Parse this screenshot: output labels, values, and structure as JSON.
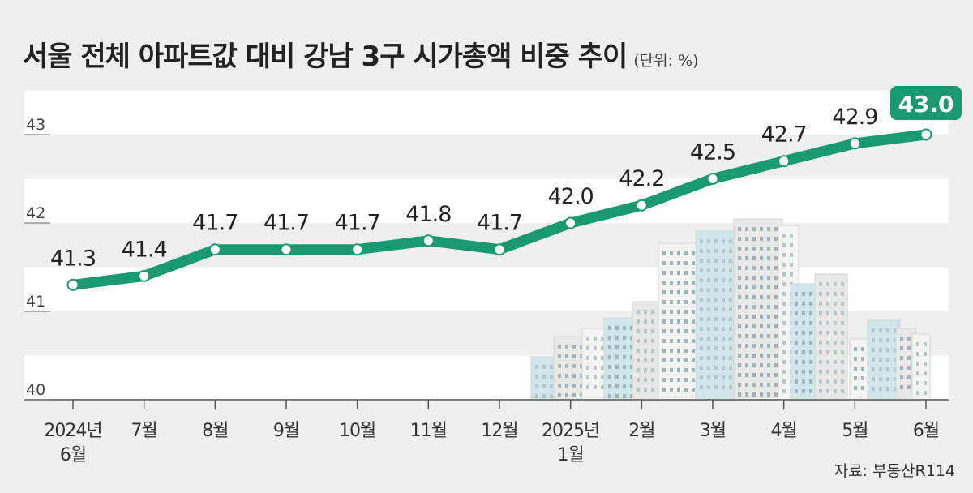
{
  "title": "서울 전체 아파트값 대비 강남 3구 시가총액 비중 추이",
  "unit": "(단위: %)",
  "source": "자료: 부동산R114",
  "colors": {
    "line": "#1a9870",
    "highlight": "#1a9870",
    "band": "#ffffff",
    "background": "#efefef"
  },
  "chart_data": {
    "type": "line",
    "title": "서울 전체 아파트값 대비 강남 3구 시가총액 비중 추이",
    "ylabel": "(단위: %)",
    "xlabel": "",
    "ylim": [
      40,
      43
    ],
    "yticks": [
      40,
      41,
      42,
      43
    ],
    "categories": [
      [
        "2024년",
        "6월"
      ],
      [
        "7월"
      ],
      [
        "8월"
      ],
      [
        "9월"
      ],
      [
        "10월"
      ],
      [
        "11월"
      ],
      [
        "12월"
      ],
      [
        "2025년",
        "1월"
      ],
      [
        "2월"
      ],
      [
        "3월"
      ],
      [
        "4월"
      ],
      [
        "5월"
      ],
      [
        "6월"
      ]
    ],
    "series": [
      {
        "values": [
          41.3,
          41.4,
          41.7,
          41.7,
          41.7,
          41.8,
          41.7,
          42.0,
          42.2,
          42.5,
          42.7,
          42.9,
          43.0
        ]
      }
    ],
    "data_labels": [
      "41.3",
      "41.4",
      "41.7",
      "41.7",
      "41.7",
      "41.8",
      "41.7",
      "42.0",
      "42.2",
      "42.5",
      "42.7",
      "42.9",
      "43.0"
    ],
    "grid": "horizontal bands",
    "legend": "none"
  }
}
